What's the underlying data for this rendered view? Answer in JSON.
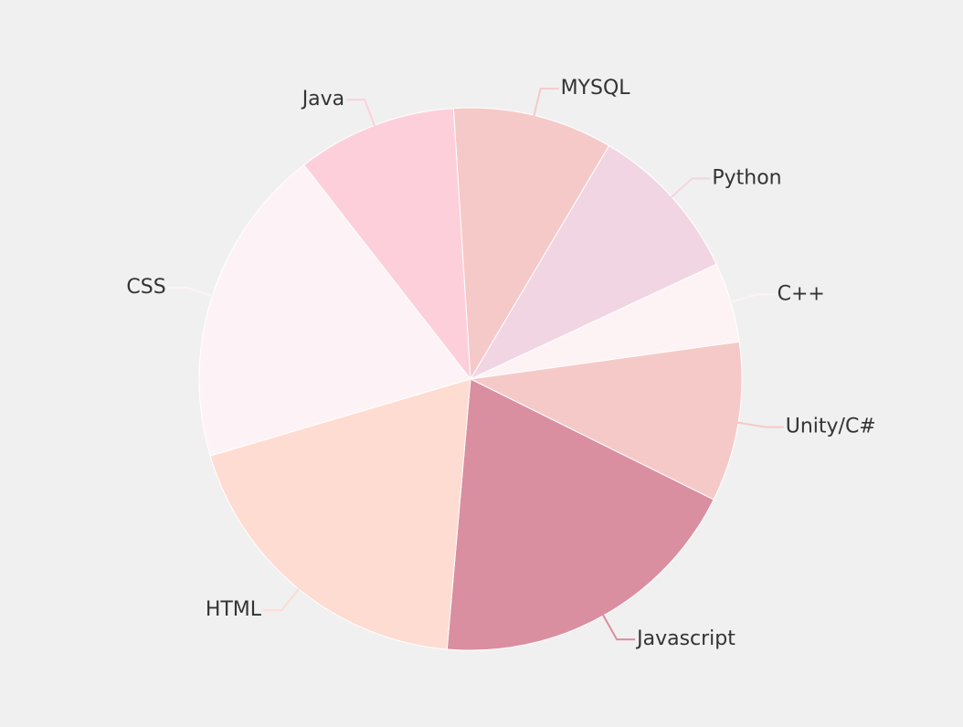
{
  "chart_data": {
    "type": "pie",
    "title": "",
    "slices": [
      {
        "label": "MYSQL",
        "value": 10,
        "color": "#f6c9c9"
      },
      {
        "label": "Python",
        "value": 10,
        "color": "#f1d5e3"
      },
      {
        "label": "C++",
        "value": 5,
        "color": "#fdf3f4"
      },
      {
        "label": "Unity/C#",
        "value": 10,
        "color": "#f6c9c9"
      },
      {
        "label": "Javascript",
        "value": 20,
        "color": "#d98fa0"
      },
      {
        "label": "HTML",
        "value": 20,
        "color": "#fedcd1"
      },
      {
        "label": "CSS",
        "value": 20,
        "color": "#fdf3f6"
      },
      {
        "label": "Java",
        "value": 10,
        "color": "#fdcfdb"
      }
    ],
    "legend": "none"
  }
}
